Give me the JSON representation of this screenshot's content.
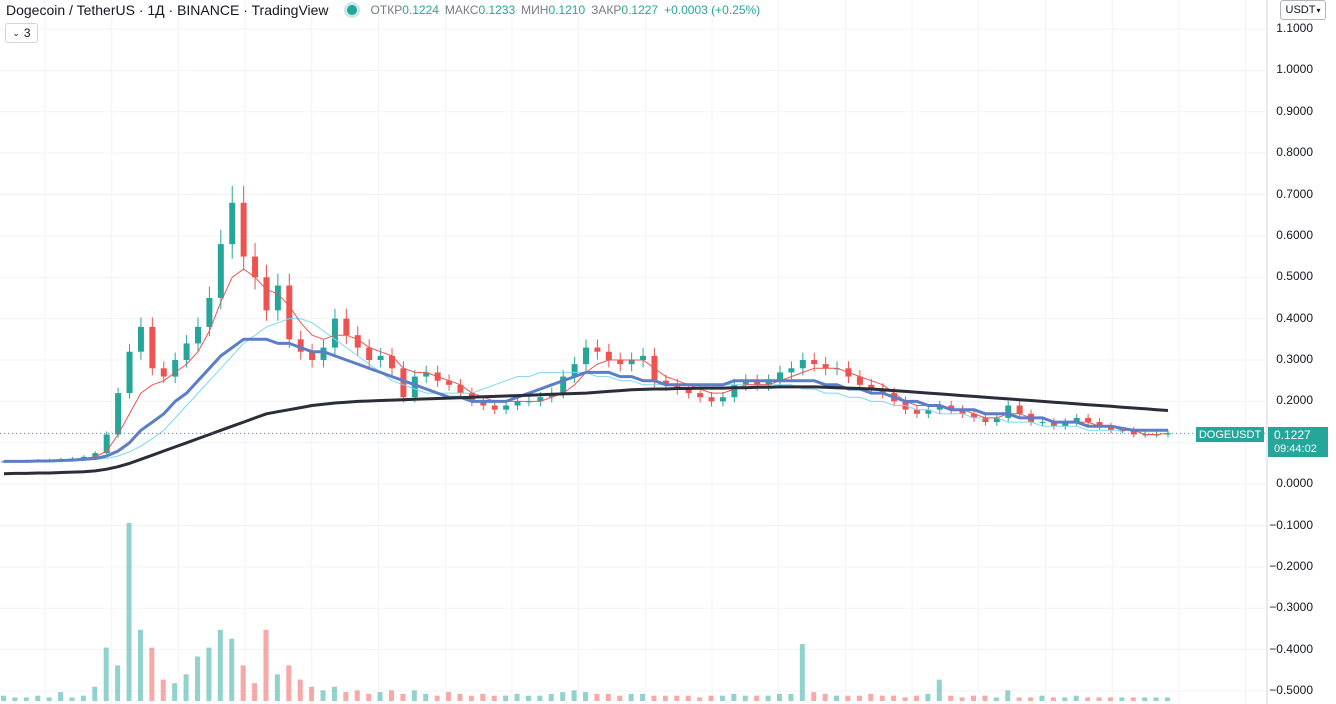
{
  "header": {
    "title": "Dogecoin / TetherUS · 1Д · BINANCE · TradingView",
    "ohlc": [
      {
        "label": "ОТКР",
        "value": "0.1224"
      },
      {
        "label": "МАКС",
        "value": "0.1233"
      },
      {
        "label": "МИН",
        "value": "0.1210"
      },
      {
        "label": "ЗАКР",
        "value": "0.1227"
      }
    ],
    "change": "+0.0003 (+0.25%)",
    "indicators_collapsed": "3"
  },
  "currency_selector": "USDT",
  "price_tag": {
    "symbol": "DOGEUSDT",
    "price": "0.1227",
    "countdown": "09:44:02"
  },
  "colors": {
    "up": "#26a69a",
    "down": "#ef5350",
    "ma_fast": "#ef5350",
    "ma_mid": "#5b7ec7",
    "ma_light": "#7dd8f0",
    "ma_slow": "#2a2e39"
  },
  "chart_data": {
    "type": "line",
    "title": "Dogecoin / TetherUS",
    "ylabel": "",
    "xlabel": "",
    "y_ticks": [
      "1.1000",
      "1.0000",
      "0.9000",
      "0.8000",
      "0.7000",
      "0.6000",
      "0.5000",
      "0.4000",
      "0.3000",
      "0.2000",
      "0.1000",
      "0.0000",
      "−0.1000",
      "−0.2000",
      "−0.3000",
      "−0.4000",
      "−0.5000"
    ],
    "ylim": [
      -0.5,
      1.1
    ],
    "grid": true,
    "last_price": 0.1227,
    "price_close_series": [
      0.055,
      0.055,
      0.056,
      0.057,
      0.058,
      0.06,
      0.062,
      0.066,
      0.075,
      0.12,
      0.22,
      0.32,
      0.38,
      0.28,
      0.26,
      0.3,
      0.34,
      0.38,
      0.45,
      0.58,
      0.68,
      0.55,
      0.5,
      0.42,
      0.48,
      0.35,
      0.32,
      0.3,
      0.33,
      0.4,
      0.36,
      0.33,
      0.3,
      0.31,
      0.28,
      0.21,
      0.26,
      0.27,
      0.25,
      0.24,
      0.22,
      0.2,
      0.19,
      0.18,
      0.19,
      0.2,
      0.2,
      0.21,
      0.22,
      0.26,
      0.29,
      0.33,
      0.32,
      0.3,
      0.29,
      0.3,
      0.31,
      0.25,
      0.24,
      0.23,
      0.22,
      0.21,
      0.2,
      0.21,
      0.24,
      0.25,
      0.24,
      0.25,
      0.27,
      0.28,
      0.3,
      0.29,
      0.28,
      0.28,
      0.26,
      0.24,
      0.23,
      0.22,
      0.2,
      0.18,
      0.17,
      0.18,
      0.19,
      0.18,
      0.17,
      0.16,
      0.15,
      0.16,
      0.19,
      0.17,
      0.15,
      0.15,
      0.14,
      0.15,
      0.16,
      0.15,
      0.14,
      0.13,
      0.13,
      0.12,
      0.12,
      0.12,
      0.1227
    ],
    "ma_fast": [
      0.055,
      0.055,
      0.055,
      0.056,
      0.057,
      0.058,
      0.06,
      0.062,
      0.066,
      0.08,
      0.12,
      0.17,
      0.22,
      0.24,
      0.25,
      0.27,
      0.29,
      0.32,
      0.37,
      0.44,
      0.5,
      0.52,
      0.5,
      0.47,
      0.46,
      0.43,
      0.39,
      0.36,
      0.35,
      0.36,
      0.36,
      0.35,
      0.33,
      0.32,
      0.31,
      0.28,
      0.27,
      0.27,
      0.26,
      0.25,
      0.24,
      0.22,
      0.21,
      0.2,
      0.2,
      0.2,
      0.2,
      0.2,
      0.21,
      0.22,
      0.24,
      0.27,
      0.29,
      0.3,
      0.3,
      0.3,
      0.3,
      0.28,
      0.26,
      0.25,
      0.24,
      0.23,
      0.22,
      0.22,
      0.23,
      0.24,
      0.24,
      0.24,
      0.25,
      0.26,
      0.27,
      0.28,
      0.28,
      0.28,
      0.27,
      0.26,
      0.25,
      0.24,
      0.22,
      0.2,
      0.19,
      0.19,
      0.19,
      0.18,
      0.18,
      0.17,
      0.16,
      0.16,
      0.17,
      0.17,
      0.16,
      0.16,
      0.15,
      0.15,
      0.15,
      0.15,
      0.14,
      0.14,
      0.13,
      0.13,
      0.12,
      0.12,
      0.123
    ],
    "ma_mid": [
      0.055,
      0.055,
      0.055,
      0.056,
      0.056,
      0.057,
      0.058,
      0.06,
      0.062,
      0.068,
      0.08,
      0.1,
      0.13,
      0.15,
      0.17,
      0.2,
      0.22,
      0.25,
      0.28,
      0.31,
      0.33,
      0.35,
      0.35,
      0.35,
      0.34,
      0.34,
      0.33,
      0.32,
      0.32,
      0.31,
      0.3,
      0.29,
      0.28,
      0.27,
      0.26,
      0.25,
      0.24,
      0.23,
      0.22,
      0.21,
      0.21,
      0.2,
      0.2,
      0.2,
      0.2,
      0.21,
      0.22,
      0.23,
      0.24,
      0.25,
      0.26,
      0.27,
      0.27,
      0.27,
      0.26,
      0.26,
      0.25,
      0.25,
      0.24,
      0.24,
      0.24,
      0.24,
      0.24,
      0.24,
      0.25,
      0.25,
      0.25,
      0.25,
      0.25,
      0.25,
      0.25,
      0.25,
      0.24,
      0.24,
      0.23,
      0.23,
      0.22,
      0.22,
      0.21,
      0.2,
      0.2,
      0.19,
      0.19,
      0.18,
      0.18,
      0.18,
      0.17,
      0.17,
      0.17,
      0.16,
      0.16,
      0.16,
      0.15,
      0.15,
      0.15,
      0.14,
      0.14,
      0.14,
      0.135,
      0.13,
      0.13,
      0.13,
      0.13
    ],
    "ma_light": [
      0.055,
      0.055,
      0.055,
      0.055,
      0.056,
      0.056,
      0.057,
      0.058,
      0.06,
      0.062,
      0.068,
      0.078,
      0.092,
      0.11,
      0.13,
      0.16,
      0.19,
      0.22,
      0.25,
      0.28,
      0.31,
      0.34,
      0.36,
      0.38,
      0.39,
      0.4,
      0.4,
      0.39,
      0.37,
      0.35,
      0.33,
      0.31,
      0.29,
      0.27,
      0.25,
      0.24,
      0.23,
      0.22,
      0.22,
      0.22,
      0.22,
      0.22,
      0.23,
      0.24,
      0.25,
      0.26,
      0.26,
      0.27,
      0.27,
      0.27,
      0.27,
      0.27,
      0.26,
      0.26,
      0.25,
      0.25,
      0.24,
      0.24,
      0.24,
      0.24,
      0.24,
      0.24,
      0.24,
      0.24,
      0.24,
      0.24,
      0.24,
      0.24,
      0.24,
      0.24,
      0.23,
      0.23,
      0.22,
      0.22,
      0.21,
      0.21,
      0.2,
      0.2,
      0.19,
      0.19,
      0.18,
      0.18,
      0.17,
      0.17,
      0.17,
      0.16,
      0.16,
      0.16,
      0.15,
      0.15,
      0.15,
      0.14,
      0.14,
      0.14,
      0.14,
      0.13,
      0.13,
      0.13,
      0.13,
      0.13,
      0.13,
      0.13,
      0.13
    ],
    "ma_slow": [
      0.025,
      0.026,
      0.026,
      0.027,
      0.027,
      0.028,
      0.029,
      0.03,
      0.032,
      0.036,
      0.042,
      0.05,
      0.06,
      0.07,
      0.08,
      0.09,
      0.1,
      0.11,
      0.12,
      0.13,
      0.14,
      0.15,
      0.16,
      0.17,
      0.175,
      0.18,
      0.185,
      0.19,
      0.193,
      0.196,
      0.198,
      0.2,
      0.201,
      0.202,
      0.203,
      0.204,
      0.205,
      0.206,
      0.207,
      0.208,
      0.209,
      0.21,
      0.211,
      0.212,
      0.213,
      0.214,
      0.215,
      0.216,
      0.217,
      0.218,
      0.219,
      0.22,
      0.222,
      0.224,
      0.226,
      0.228,
      0.229,
      0.23,
      0.23,
      0.231,
      0.231,
      0.232,
      0.232,
      0.232,
      0.233,
      0.233,
      0.234,
      0.234,
      0.235,
      0.235,
      0.235,
      0.235,
      0.234,
      0.233,
      0.232,
      0.231,
      0.23,
      0.228,
      0.226,
      0.224,
      0.222,
      0.22,
      0.218,
      0.216,
      0.214,
      0.212,
      0.21,
      0.208,
      0.206,
      0.204,
      0.202,
      0.2,
      0.198,
      0.196,
      0.194,
      0.192,
      0.19,
      0.188,
      0.186,
      0.184,
      0.182,
      0.18,
      0.178
    ],
    "volume_relative": [
      0.03,
      0.02,
      0.02,
      0.03,
      0.02,
      0.05,
      0.02,
      0.03,
      0.08,
      0.3,
      0.2,
      1.0,
      0.4,
      0.3,
      0.12,
      0.1,
      0.15,
      0.25,
      0.3,
      0.4,
      0.35,
      0.2,
      0.1,
      0.4,
      0.15,
      0.2,
      0.12,
      0.08,
      0.06,
      0.08,
      0.05,
      0.06,
      0.04,
      0.05,
      0.06,
      0.04,
      0.06,
      0.04,
      0.03,
      0.05,
      0.04,
      0.03,
      0.04,
      0.03,
      0.03,
      0.04,
      0.03,
      0.03,
      0.04,
      0.05,
      0.06,
      0.05,
      0.04,
      0.04,
      0.03,
      0.04,
      0.04,
      0.03,
      0.03,
      0.03,
      0.03,
      0.02,
      0.03,
      0.03,
      0.04,
      0.03,
      0.03,
      0.03,
      0.04,
      0.04,
      0.32,
      0.05,
      0.04,
      0.03,
      0.03,
      0.03,
      0.04,
      0.03,
      0.03,
      0.02,
      0.03,
      0.04,
      0.12,
      0.03,
      0.02,
      0.03,
      0.03,
      0.02,
      0.06,
      0.02,
      0.02,
      0.03,
      0.02,
      0.02,
      0.03,
      0.02,
      0.02,
      0.02,
      0.02,
      0.02,
      0.02,
      0.02,
      0.02
    ]
  }
}
